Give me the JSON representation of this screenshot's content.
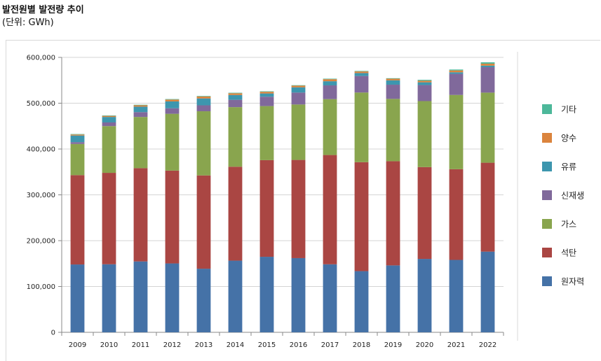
{
  "header": {
    "title": "발전원별 발전량 추이",
    "unit": "(단위: GWh)"
  },
  "chart_data": {
    "type": "bar",
    "stacked": true,
    "title": "발전원별 발전량 추이",
    "unit_label": "(단위: GWh)",
    "xlabel": "",
    "ylabel": "",
    "ylim": [
      0,
      600000
    ],
    "yticks": [
      0,
      100000,
      200000,
      300000,
      400000,
      500000,
      600000
    ],
    "ytick_labels": [
      "0",
      "100,000",
      "200,000",
      "300,000",
      "400,000",
      "500,000",
      "600,000"
    ],
    "grid": true,
    "legend_position": "right",
    "categories": [
      "2009",
      "2010",
      "2011",
      "2012",
      "2013",
      "2014",
      "2015",
      "2016",
      "2017",
      "2018",
      "2019",
      "2020",
      "2021",
      "2022"
    ],
    "series": [
      {
        "name": "원자력",
        "color": "#4572A7",
        "values": [
          148000,
          148500,
          154700,
          150300,
          138800,
          156400,
          164800,
          161900,
          148400,
          133500,
          146000,
          160200,
          158000,
          176100
        ]
      },
      {
        "name": "석탄",
        "color": "#AA4643",
        "values": [
          195000,
          199500,
          203500,
          202600,
          203600,
          205000,
          210900,
          214300,
          238500,
          237800,
          227400,
          200400,
          198000,
          194000
        ]
      },
      {
        "name": "가스",
        "color": "#89A54E",
        "values": [
          68000,
          102000,
          111800,
          124000,
          140000,
          130000,
          118000,
          121000,
          122000,
          152000,
          136000,
          144000,
          162000,
          153000
        ]
      },
      {
        "name": "신재생",
        "color": "#80699B",
        "values": [
          4000,
          8000,
          10500,
          12000,
          13000,
          16000,
          20500,
          26000,
          30000,
          36000,
          31000,
          35000,
          46000,
          55500
        ]
      },
      {
        "name": "유류",
        "color": "#3D96AE",
        "values": [
          14500,
          12000,
          12000,
          15000,
          15000,
          10500,
          7000,
          11500,
          9000,
          6500,
          9500,
          6000,
          3500,
          3400
        ]
      },
      {
        "name": "양수",
        "color": "#DB843D",
        "values": [
          2200,
          2300,
          3000,
          4000,
          4300,
          3800,
          3700,
          3600,
          4500,
          3500,
          3500,
          3400,
          4000,
          4200
        ]
      },
      {
        "name": "기타",
        "color": "#4DB89A",
        "values": [
          1000,
          1000,
          1100,
          1100,
          1100,
          1100,
          1100,
          1000,
          1100,
          1100,
          1100,
          2000,
          2000,
          3000
        ]
      }
    ]
  }
}
